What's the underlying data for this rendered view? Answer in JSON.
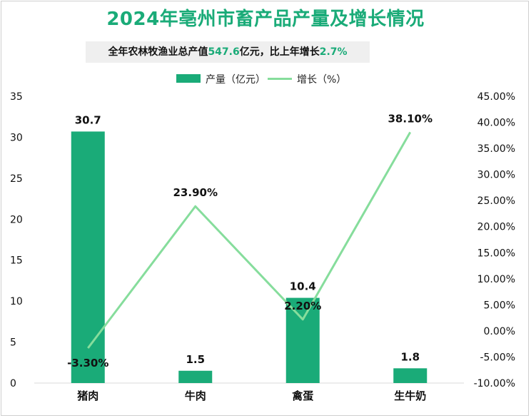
{
  "title": "2024年亳州市畜产品产量及增长情况",
  "subtitle": {
    "prefix": "全年农林牧渔业总产值",
    "total_value": "547.6",
    "middle": "亿元，比上年增长",
    "growth_value": "2.7%"
  },
  "colors": {
    "bar": "#1aab78",
    "line": "#86dd9c",
    "title": "#1aab78"
  },
  "legend": {
    "bar_label": "产量（亿元）",
    "line_label": "增长（%）"
  },
  "chart_data": {
    "type": "bar",
    "categories": [
      "猪肉",
      "牛肉",
      "禽蛋",
      "生牛奶"
    ],
    "series": [
      {
        "name": "产量（亿元）",
        "type": "bar",
        "axis": "left",
        "values": [
          30.7,
          1.5,
          10.4,
          1.8
        ],
        "labels": [
          "30.7",
          "1.5",
          "10.4",
          "1.8"
        ]
      },
      {
        "name": "增长（%）",
        "type": "line",
        "axis": "right",
        "values": [
          -3.3,
          23.9,
          2.2,
          38.1
        ],
        "labels": [
          "-3.30%",
          "23.90%",
          "2.20%",
          "38.10%"
        ]
      }
    ],
    "y_left": {
      "ylim": [
        0,
        35
      ],
      "ticks": [
        "0",
        "5",
        "10",
        "15",
        "20",
        "25",
        "30",
        "35"
      ]
    },
    "y_right": {
      "ylim": [
        -10,
        45
      ],
      "ticks": [
        "-10.00%",
        "-5.00%",
        "0.00%",
        "5.00%",
        "10.00%",
        "15.00%",
        "20.00%",
        "25.00%",
        "30.00%",
        "35.00%",
        "40.00%",
        "45.00%"
      ]
    },
    "grid": false,
    "legend_position": "top"
  }
}
